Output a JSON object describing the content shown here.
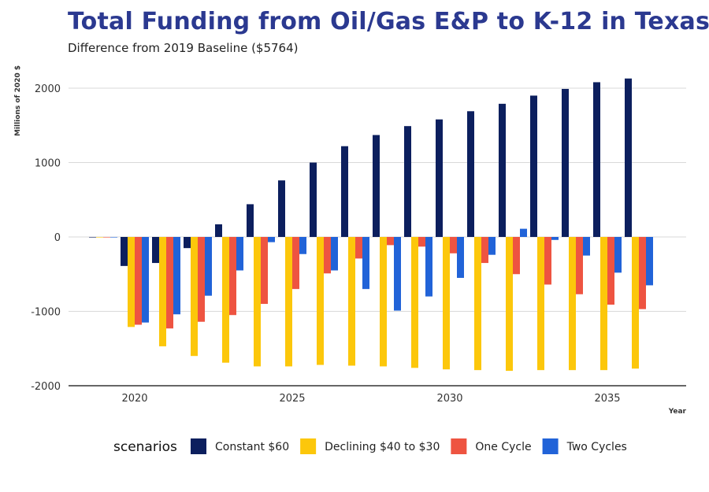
{
  "title": "Total Funding from Oil/Gas E&P to K-12 in Texas",
  "subtitle": "Difference from 2019 Baseline ($5764)",
  "chart_data": {
    "type": "bar",
    "title": "Total Funding from Oil/Gas E&P to K-12 in Texas",
    "subtitle": "Difference from 2019 Baseline ($5764)",
    "xlabel": "Year",
    "ylabel": "Millions of 2020 $",
    "x": [
      2019,
      2020,
      2021,
      2022,
      2023,
      2024,
      2025,
      2026,
      2027,
      2028,
      2029,
      2030,
      2031,
      2032,
      2033,
      2034,
      2035,
      2036
    ],
    "xticks": [
      2020,
      2025,
      2030,
      2035
    ],
    "xlim": [
      2017.9,
      2037.5
    ],
    "yticks": [
      -2000,
      -1000,
      0,
      1000,
      2000
    ],
    "ylim": [
      -2000,
      2200
    ],
    "grid": true,
    "legend_title": "scenarios",
    "legend_position": "bottom",
    "series": [
      {
        "name": "Constant $60",
        "color": "#0c1f5e",
        "values": [
          0,
          -390,
          -350,
          -150,
          170,
          440,
          760,
          1000,
          1220,
          1370,
          1490,
          1580,
          1690,
          1790,
          1900,
          1990,
          2080,
          2130
        ]
      },
      {
        "name": "Declining $40 to $30",
        "color": "#fcc70b",
        "values": [
          0,
          -1210,
          -1470,
          -1600,
          -1690,
          -1740,
          -1740,
          -1720,
          -1730,
          -1740,
          -1760,
          -1780,
          -1790,
          -1800,
          -1790,
          -1790,
          -1790,
          -1770
        ]
      },
      {
        "name": "One Cycle",
        "color": "#ee5441",
        "values": [
          0,
          -1180,
          -1230,
          -1140,
          -1050,
          -900,
          -700,
          -490,
          -290,
          -110,
          -130,
          -220,
          -350,
          -500,
          -640,
          -770,
          -910,
          -970
        ]
      },
      {
        "name": "Two Cycles",
        "color": "#2163d8",
        "values": [
          0,
          -1150,
          -1040,
          -790,
          -450,
          -70,
          -230,
          -450,
          -700,
          -990,
          -800,
          -550,
          -240,
          110,
          -40,
          -250,
          -480,
          -650
        ]
      }
    ]
  }
}
